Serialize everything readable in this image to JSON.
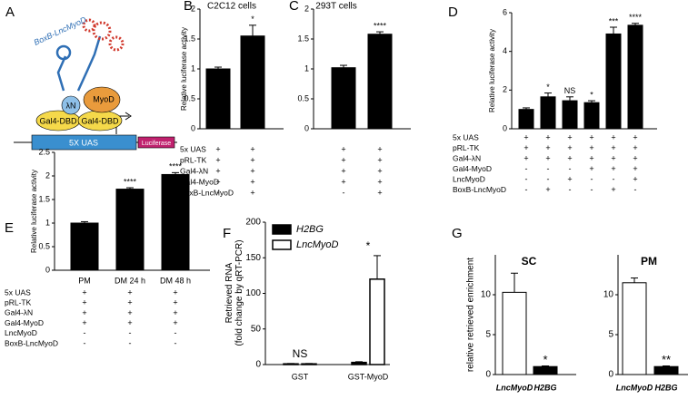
{
  "diagram": {
    "panel": "A",
    "labels": [
      "BoxB-LncMyoD",
      "λN",
      "MyoD",
      "Gal4-DBD",
      "Gal4-DBD",
      "5X UAS",
      "Luciferase"
    ]
  },
  "chart_data": [
    {
      "panel": "B",
      "type": "bar",
      "title": "C2C12 cells",
      "y_label": [
        "Relative luciferase activity"
      ],
      "color": "#000000",
      "values": [
        1.0,
        1.55
      ],
      "errors": [
        0.03,
        0.18
      ],
      "significance": [
        null,
        "*"
      ],
      "ylim": [
        0,
        2
      ],
      "yticks": [
        0,
        0.5,
        1,
        1.5,
        2
      ],
      "condition_rows": [
        {
          "label": "5x UAS",
          "signs": [
            "+",
            "+"
          ]
        },
        {
          "label": "pRL-TK",
          "signs": [
            "+",
            "+"
          ]
        },
        {
          "label": "Gal4-λN",
          "signs": [
            "+",
            "+"
          ]
        },
        {
          "label": "Gal4-MyoD",
          "signs": [
            "+",
            "+"
          ]
        },
        {
          "label": "BoxB-LncMyoD",
          "signs": [
            "-",
            "+"
          ]
        }
      ]
    },
    {
      "panel": "C",
      "type": "bar",
      "title": "293T cells",
      "color": "#000000",
      "values": [
        1.02,
        1.58
      ],
      "errors": [
        0.04,
        0.04
      ],
      "significance": [
        null,
        "****"
      ],
      "ylim": [
        0,
        2
      ],
      "yticks": [
        0,
        0.5,
        1,
        1.5,
        2
      ],
      "condition_rows": [
        {
          "signs": [
            "+",
            "+"
          ]
        },
        {
          "signs": [
            "+",
            "+"
          ]
        },
        {
          "signs": [
            "+",
            "+"
          ]
        },
        {
          "signs": [
            "+",
            "+"
          ]
        },
        {
          "signs": [
            "-",
            "+"
          ]
        }
      ]
    },
    {
      "panel": "D",
      "type": "bar",
      "y_label": [
        "Relative luciferase activity"
      ],
      "color": "#000000",
      "values": [
        1.0,
        1.65,
        1.45,
        1.35,
        4.9,
        5.35
      ],
      "errors": [
        0.08,
        0.2,
        0.2,
        0.1,
        0.35,
        0.1
      ],
      "significance": [
        null,
        "*",
        "NS",
        "*",
        "***",
        "****"
      ],
      "ylim": [
        0,
        6
      ],
      "yticks": [
        0,
        2,
        4,
        6
      ],
      "condition_rows": [
        {
          "label": "5x UAS",
          "signs": [
            "+",
            "+",
            "+",
            "+",
            "+",
            "+"
          ]
        },
        {
          "label": "pRL-TK",
          "signs": [
            "+",
            "+",
            "+",
            "+",
            "+",
            "+"
          ]
        },
        {
          "label": "Gal4-λN",
          "signs": [
            "+",
            "+",
            "+",
            "+",
            "+",
            "+"
          ]
        },
        {
          "label": "Gal4-MyoD",
          "signs": [
            "-",
            "-",
            "-",
            "+",
            "+",
            "+"
          ]
        },
        {
          "label": "LncMyoD",
          "signs": [
            "-",
            "-",
            "+",
            "-",
            "-",
            "+"
          ]
        },
        {
          "label": "BoxB-LncMyoD",
          "signs": [
            "-",
            "+",
            "-",
            "-",
            "+",
            "-"
          ]
        }
      ]
    },
    {
      "panel": "E",
      "type": "bar",
      "y_label": [
        "Relative luciferase activity"
      ],
      "color": "#000000",
      "categories": [
        "PM",
        "DM 24 h",
        "DM 48 h"
      ],
      "values": [
        1.0,
        1.72,
        2.03
      ],
      "errors": [
        0.03,
        0.03,
        0.04
      ],
      "significance": [
        null,
        "****",
        "****"
      ],
      "ylim": [
        0,
        2.5
      ],
      "yticks": [
        0,
        0.5,
        1,
        1.5,
        2,
        2.5
      ],
      "condition_rows": [
        {
          "label": "5x UAS",
          "signs": [
            "+",
            "+",
            "+"
          ]
        },
        {
          "label": "pRL-TK",
          "signs": [
            "+",
            "+",
            "+"
          ]
        },
        {
          "label": "Gal4-λN",
          "signs": [
            "+",
            "+",
            "+"
          ]
        },
        {
          "label": "Gal4-MyoD",
          "signs": [
            "+",
            "+",
            "+"
          ]
        },
        {
          "label": "LncMyoD",
          "signs": [
            "-",
            "-",
            "-"
          ]
        },
        {
          "label": "BoxB-LncMyoD",
          "signs": [
            "-",
            "-",
            "-"
          ]
        }
      ]
    },
    {
      "panel": "F",
      "type": "grouped_bar",
      "y_label": [
        "Retrieved RNA",
        "(fold change by qRT-PCR)"
      ],
      "categories": [
        "GST",
        "GST-MyoD"
      ],
      "annotations": [
        "NS",
        "*"
      ],
      "legend": "upper left",
      "series": [
        {
          "name": "H2BG",
          "color": "#000000",
          "values": [
            1,
            3
          ],
          "errors": [
            0.5,
            1
          ]
        },
        {
          "name": "LncMyoD",
          "color": "#ffffff",
          "values": [
            1,
            120
          ],
          "errors": [
            0.5,
            33
          ]
        }
      ],
      "ylim": [
        0,
        200
      ],
      "yticks": [
        0,
        50,
        100,
        150,
        200
      ]
    },
    {
      "panel": "G",
      "type": "bar",
      "title": "SC",
      "y_label": [
        "relative retrieved enrichment"
      ],
      "categories": [
        "LncMyoD",
        "H2BG"
      ],
      "colors": [
        "#ffffff",
        "#000000"
      ],
      "values": [
        10.3,
        1.0
      ],
      "errors": [
        2.4,
        0.08
      ],
      "significance": [
        null,
        "*"
      ],
      "ylim": [
        0,
        15
      ],
      "yticks": [
        0,
        5,
        10
      ]
    },
    {
      "type": "bar",
      "title": "PM",
      "categories": [
        "LncMyoD",
        "H2BG"
      ],
      "colors": [
        "#ffffff",
        "#000000"
      ],
      "values": [
        11.5,
        1.0
      ],
      "errors": [
        0.6,
        0.08
      ],
      "significance": [
        null,
        "**"
      ],
      "ylim": [
        0,
        15
      ],
      "yticks": [
        0,
        5,
        10
      ]
    }
  ]
}
